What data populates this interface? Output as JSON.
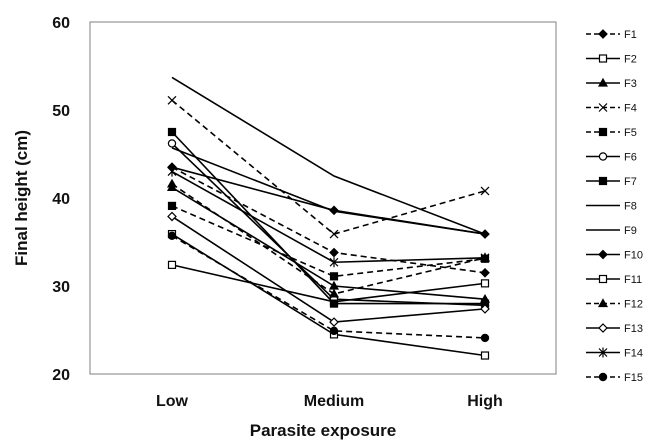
{
  "chart_data": {
    "type": "line",
    "xlabel": "Parasite exposure",
    "ylabel": "Final height (cm)",
    "categories": [
      "Low",
      "Medium",
      "High"
    ],
    "ylim": [
      20,
      60
    ],
    "yticks": [
      20,
      30,
      40,
      50,
      60
    ],
    "grid": false,
    "legend_position": "right",
    "colors": {
      "series": "#000000",
      "frame": "#808080",
      "background": "#ffffff"
    },
    "series": [
      {
        "name": "F1",
        "values": [
          43.5,
          33.8,
          31.5
        ],
        "line": "dashed",
        "marker": "diamond-filled"
      },
      {
        "name": "F2",
        "values": [
          32.4,
          28.2,
          30.3
        ],
        "line": "solid",
        "marker": "square-open"
      },
      {
        "name": "F3",
        "values": [
          41.2,
          30.0,
          28.5
        ],
        "line": "solid",
        "marker": "triangle-filled"
      },
      {
        "name": "F4",
        "values": [
          51.1,
          35.9,
          40.8
        ],
        "line": "dashed",
        "marker": "x"
      },
      {
        "name": "F5",
        "values": [
          39.1,
          31.1,
          33.1
        ],
        "line": "dashed",
        "marker": "square-filled"
      },
      {
        "name": "F6",
        "values": [
          46.2,
          28.5,
          27.8
        ],
        "line": "solid",
        "marker": "circle-open"
      },
      {
        "name": "F7",
        "values": [
          47.5,
          28.0,
          28.0
        ],
        "line": "solid",
        "marker": "square-filled"
      },
      {
        "name": "F8",
        "values": [
          53.7,
          42.5,
          35.9
        ],
        "line": "solid",
        "marker": "none"
      },
      {
        "name": "F9",
        "values": [
          45.7,
          38.5,
          35.9
        ],
        "line": "solid",
        "marker": "none"
      },
      {
        "name": "F10",
        "values": [
          43.5,
          38.6,
          35.9
        ],
        "line": "solid",
        "marker": "diamond-filled"
      },
      {
        "name": "F11",
        "values": [
          35.9,
          24.5,
          22.1
        ],
        "line": "solid",
        "marker": "square-open"
      },
      {
        "name": "F12",
        "values": [
          41.6,
          29.1,
          33.2
        ],
        "line": "dashed",
        "marker": "triangle-filled"
      },
      {
        "name": "F13",
        "values": [
          37.9,
          25.9,
          27.4
        ],
        "line": "solid",
        "marker": "diamond-open"
      },
      {
        "name": "F14",
        "values": [
          43.0,
          32.7,
          33.2
        ],
        "line": "solid",
        "marker": "asterisk"
      },
      {
        "name": "F15",
        "values": [
          35.7,
          24.9,
          24.1
        ],
        "line": "dashed",
        "marker": "circle-filled"
      }
    ]
  }
}
